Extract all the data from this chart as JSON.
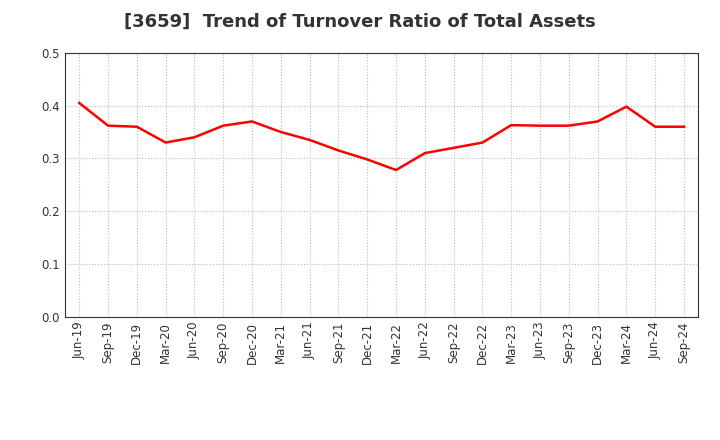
{
  "title": "[3659]  Trend of Turnover Ratio of Total Assets",
  "x_labels": [
    "Jun-19",
    "Sep-19",
    "Dec-19",
    "Mar-20",
    "Jun-20",
    "Sep-20",
    "Dec-20",
    "Mar-21",
    "Jun-21",
    "Sep-21",
    "Dec-21",
    "Mar-22",
    "Jun-22",
    "Sep-22",
    "Dec-22",
    "Mar-23",
    "Jun-23",
    "Sep-23",
    "Dec-23",
    "Mar-24",
    "Jun-24",
    "Sep-24"
  ],
  "y_values": [
    0.405,
    0.362,
    0.36,
    0.33,
    0.34,
    0.362,
    0.37,
    0.35,
    0.335,
    0.315,
    0.298,
    0.278,
    0.31,
    0.32,
    0.33,
    0.363,
    0.362,
    0.362,
    0.37,
    0.398,
    0.36,
    0.36
  ],
  "line_color": "#FF0000",
  "line_width": 1.8,
  "ylim": [
    0.0,
    0.5
  ],
  "yticks": [
    0.0,
    0.1,
    0.2,
    0.3,
    0.4,
    0.5
  ],
  "background_color": "#FFFFFF",
  "grid_color": "#BBBBBB",
  "title_fontsize": 13,
  "tick_fontsize": 8.5,
  "title_color": "#333333"
}
